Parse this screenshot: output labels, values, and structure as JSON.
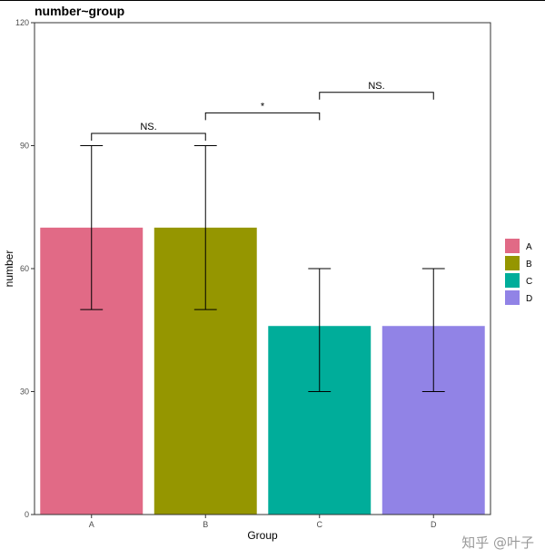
{
  "chart_data": {
    "type": "bar",
    "title": "number~group",
    "xlabel": "Group",
    "ylabel": "number",
    "categories": [
      "A",
      "B",
      "C",
      "D"
    ],
    "values": [
      70,
      70,
      46,
      46
    ],
    "error_low": [
      50,
      50,
      30,
      30
    ],
    "error_high": [
      90,
      90,
      60,
      60
    ],
    "ylim": [
      0,
      120
    ],
    "yticks": [
      0,
      30,
      60,
      90,
      120
    ],
    "grid": false,
    "legend_position": "right",
    "colors": [
      "#E16A86",
      "#959600",
      "#00AD9A",
      "#9183E6"
    ],
    "legend": [
      "A",
      "B",
      "C",
      "D"
    ],
    "comparisons": [
      {
        "from": "A",
        "to": "B",
        "label": "NS.",
        "y": 93
      },
      {
        "from": "B",
        "to": "C",
        "label": "*",
        "y": 98
      },
      {
        "from": "C",
        "to": "D",
        "label": "NS.",
        "y": 103
      }
    ]
  },
  "watermark": "知乎 @叶子"
}
